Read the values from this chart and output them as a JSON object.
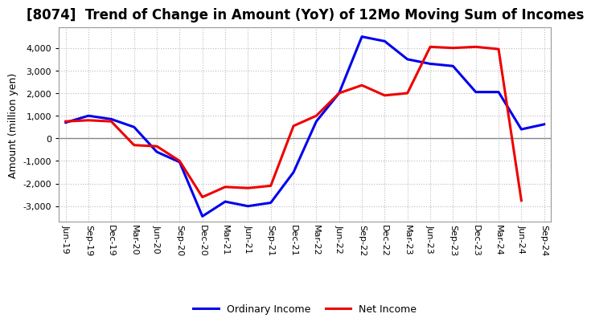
{
  "title": "[8074]  Trend of Change in Amount (YoY) of 12Mo Moving Sum of Incomes",
  "ylabel": "Amount (million yen)",
  "x_labels": [
    "Jun-19",
    "Sep-19",
    "Dec-19",
    "Mar-20",
    "Jun-20",
    "Sep-20",
    "Dec-20",
    "Mar-21",
    "Jun-21",
    "Sep-21",
    "Dec-21",
    "Mar-22",
    "Jun-22",
    "Sep-22",
    "Dec-22",
    "Mar-23",
    "Jun-23",
    "Sep-23",
    "Dec-23",
    "Mar-24",
    "Jun-24",
    "Sep-24"
  ],
  "ordinary_income": [
    700,
    1000,
    850,
    500,
    -600,
    -1050,
    -3450,
    -2800,
    -3000,
    -2850,
    -1500,
    750,
    2000,
    4500,
    4300,
    3500,
    3300,
    3200,
    2050,
    2050,
    400,
    620
  ],
  "net_income": [
    750,
    800,
    750,
    -300,
    -350,
    -1000,
    -2600,
    -2150,
    -2200,
    -2100,
    550,
    1000,
    2000,
    2350,
    1900,
    2000,
    4050,
    4000,
    4050,
    3950,
    -2750,
    null
  ],
  "ordinary_color": "#0000ee",
  "net_color": "#ee0000",
  "background_color": "#ffffff",
  "grid_color": "#bbbbbb",
  "ylim": [
    -3700,
    4900
  ],
  "yticks": [
    -3000,
    -2000,
    -1000,
    0,
    1000,
    2000,
    3000,
    4000
  ],
  "legend_labels": [
    "Ordinary Income",
    "Net Income"
  ],
  "title_fontsize": 12,
  "axis_fontsize": 8,
  "ylabel_fontsize": 9
}
